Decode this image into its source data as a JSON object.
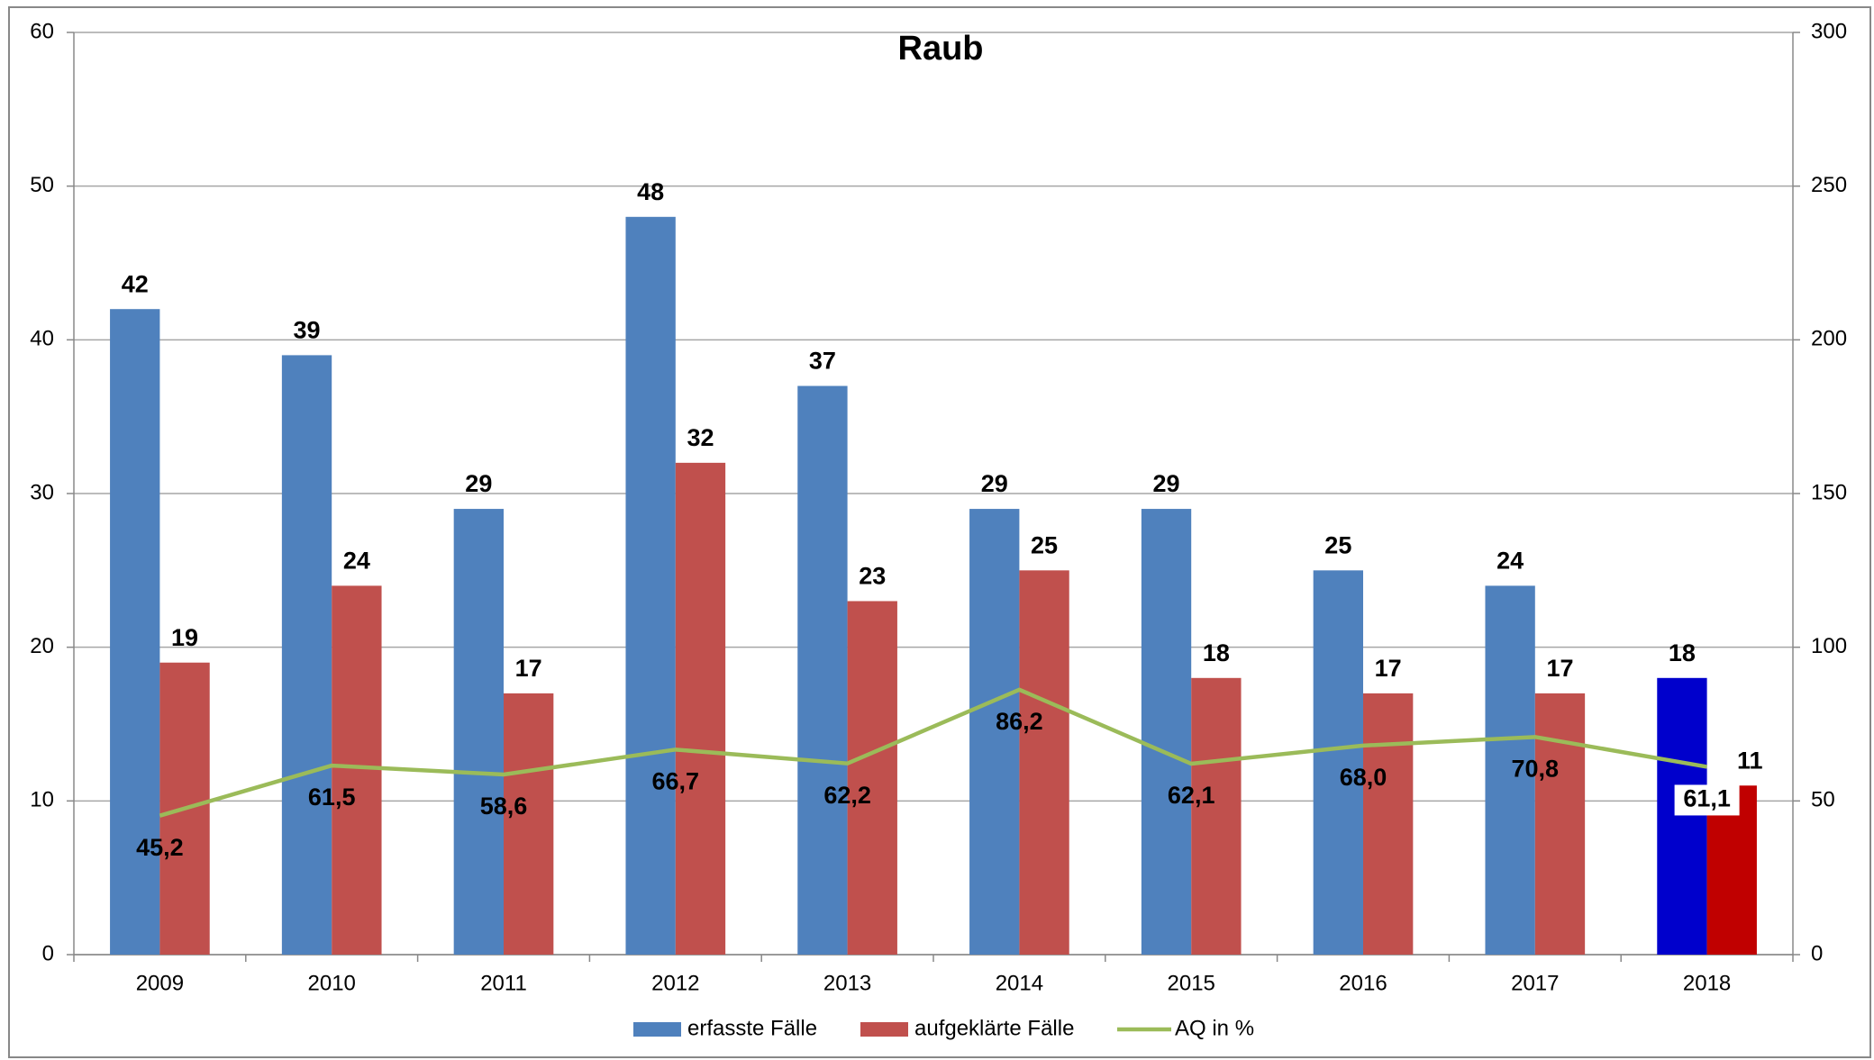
{
  "chart_data": {
    "type": "bar",
    "title": "Raub",
    "categories": [
      "2009",
      "2010",
      "2011",
      "2012",
      "2013",
      "2014",
      "2015",
      "2016",
      "2017",
      "2018"
    ],
    "series": [
      {
        "name": "erfasste Fälle",
        "color": "#4f81bd",
        "colors": [
          "#4f81bd",
          "#4f81bd",
          "#4f81bd",
          "#4f81bd",
          "#4f81bd",
          "#4f81bd",
          "#4f81bd",
          "#4f81bd",
          "#4f81bd",
          "#0000cc"
        ],
        "values": [
          42,
          39,
          29,
          48,
          37,
          29,
          29,
          25,
          24,
          18
        ]
      },
      {
        "name": "aufgeklärte Fälle",
        "color": "#c0504d",
        "colors": [
          "#c0504d",
          "#c0504d",
          "#c0504d",
          "#c0504d",
          "#c0504d",
          "#c0504d",
          "#c0504d",
          "#c0504d",
          "#c0504d",
          "#c00000"
        ],
        "values": [
          19,
          24,
          17,
          32,
          23,
          25,
          18,
          17,
          17,
          11
        ]
      },
      {
        "name": "AQ in %",
        "type": "line",
        "axis": "y2",
        "color": "#9bbb59",
        "values": [
          45.2,
          61.5,
          58.6,
          66.7,
          62.2,
          86.2,
          62.1,
          68.0,
          70.8,
          61.1
        ],
        "value_labels": [
          "45,2",
          "61,5",
          "58,6",
          "66,7",
          "62,2",
          "86,2",
          "62,1",
          "68,0",
          "70,8",
          "61,1"
        ]
      }
    ],
    "ylim": [
      0,
      60
    ],
    "yticks": [
      0,
      10,
      20,
      30,
      40,
      50,
      60
    ],
    "y2lim": [
      0,
      300
    ],
    "y2ticks": [
      0,
      50,
      100,
      150,
      200,
      250,
      300
    ],
    "grid": true,
    "legend": "bottom"
  }
}
